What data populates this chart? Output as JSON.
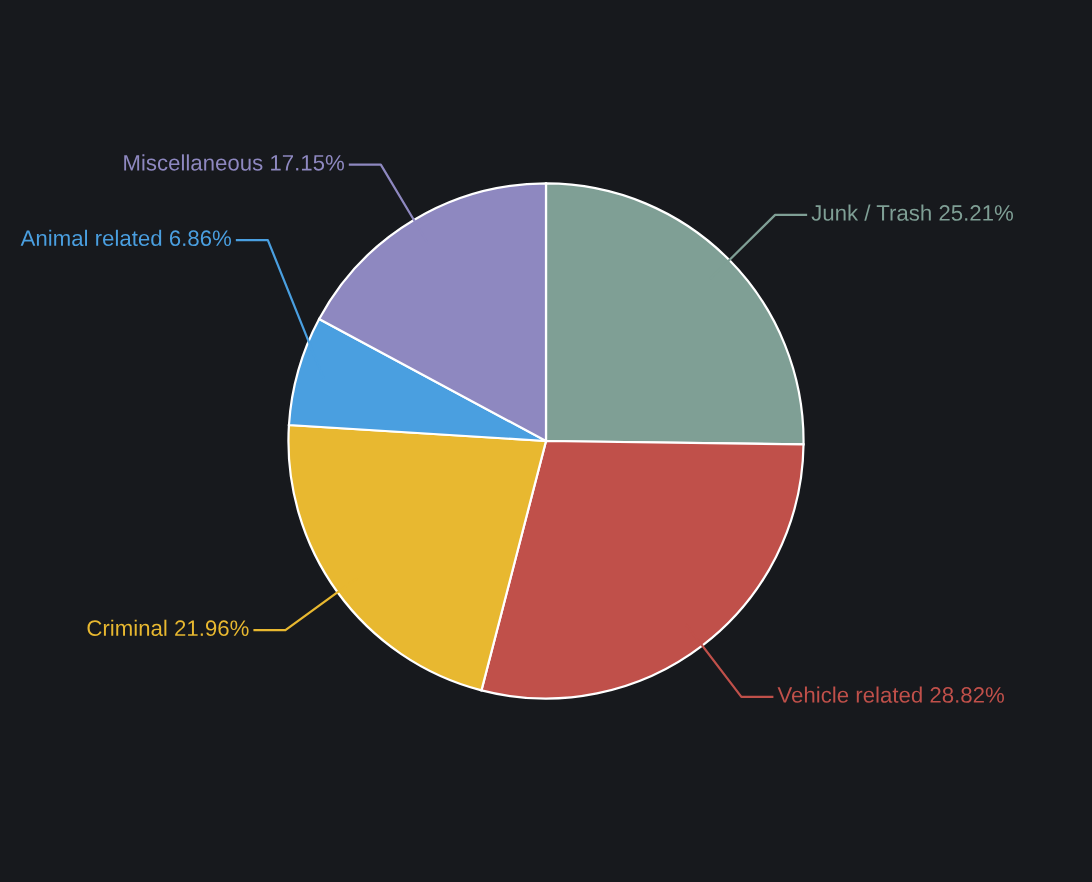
{
  "chart_data": {
    "type": "pie",
    "categories": [
      "Junk / Trash",
      "Vehicle related",
      "Criminal",
      "Animal related",
      "Miscellaneous"
    ],
    "values": [
      25.21,
      28.82,
      21.96,
      6.86,
      17.15
    ],
    "colors": [
      "#7f9f95",
      "#c0504a",
      "#e8b830",
      "#4a9fe0",
      "#8e88c0"
    ],
    "value_labels": [
      "25.21%",
      "28.82%",
      "21.96%",
      "6.86%",
      "17.15%"
    ],
    "legend": false
  }
}
